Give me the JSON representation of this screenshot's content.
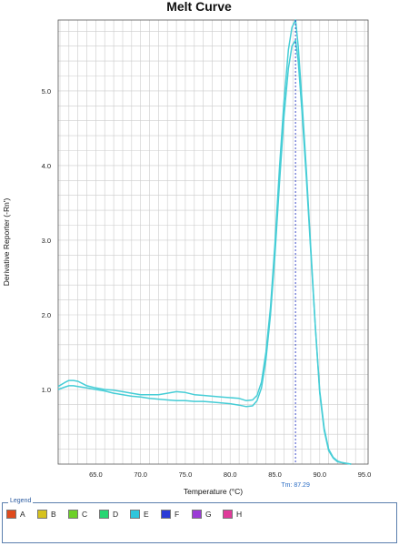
{
  "chart_data": {
    "type": "line",
    "title": "Melt Curve",
    "xlabel": "Temperature (°C)",
    "ylabel": "Derivative Reporter (-Rn')",
    "xlim": [
      60.8,
      95.4
    ],
    "ylim": [
      0.0,
      5.95
    ],
    "xticks": [
      "65.0",
      "70.0",
      "75.0",
      "80.0",
      "85.0",
      "90.0",
      "95.0"
    ],
    "yticks": [
      "1.0",
      "2.0",
      "3.0",
      "4.0",
      "5.0"
    ],
    "grid": true,
    "color": "#46cdd6",
    "tm_label": "Tm: 87.29",
    "tm_value": 87.29,
    "series": [
      {
        "x": [
          60.8,
          61.5,
          62.0,
          62.5,
          63.0,
          63.5,
          64.0,
          65.0,
          66.0,
          67.0,
          68.0,
          69.0,
          70.0,
          71.0,
          72.0,
          73.0,
          74.0,
          75.0,
          76.0,
          77.0,
          78.0,
          79.0,
          80.0,
          81.0,
          81.8,
          82.5,
          83.0,
          83.5,
          84.0,
          84.5,
          85.0,
          85.5,
          86.0,
          86.5,
          86.9,
          87.3,
          87.6,
          88.0,
          88.5,
          89.0,
          89.5,
          90.0,
          90.5,
          91.0,
          91.5,
          92.0,
          92.5,
          93.0,
          93.5
        ],
        "y": [
          1.04,
          1.09,
          1.12,
          1.12,
          1.11,
          1.08,
          1.05,
          1.02,
          1.0,
          0.99,
          0.97,
          0.95,
          0.93,
          0.93,
          0.93,
          0.95,
          0.97,
          0.96,
          0.93,
          0.92,
          0.91,
          0.9,
          0.89,
          0.88,
          0.85,
          0.86,
          0.92,
          1.1,
          1.5,
          2.1,
          2.95,
          3.95,
          4.85,
          5.55,
          5.85,
          5.95,
          5.6,
          4.9,
          3.95,
          2.9,
          1.85,
          0.95,
          0.45,
          0.18,
          0.08,
          0.03,
          0.02,
          0.01,
          0.0
        ]
      },
      {
        "x": [
          60.8,
          61.5,
          62.0,
          62.5,
          63.0,
          63.5,
          64.0,
          65.0,
          66.0,
          67.0,
          68.0,
          69.0,
          70.0,
          71.0,
          72.0,
          73.0,
          74.0,
          75.0,
          76.0,
          77.0,
          78.0,
          79.0,
          80.0,
          81.0,
          81.8,
          82.5,
          83.0,
          83.5,
          84.0,
          84.5,
          85.0,
          85.5,
          86.0,
          86.5,
          86.9,
          87.3,
          87.6,
          88.0,
          88.5,
          89.0,
          89.5,
          90.0,
          90.5,
          91.0,
          91.5,
          92.0,
          92.5,
          93.0,
          93.5
        ],
        "y": [
          1.0,
          1.03,
          1.05,
          1.05,
          1.04,
          1.03,
          1.02,
          1.0,
          0.98,
          0.95,
          0.93,
          0.91,
          0.9,
          0.88,
          0.87,
          0.86,
          0.85,
          0.85,
          0.84,
          0.84,
          0.83,
          0.82,
          0.81,
          0.79,
          0.77,
          0.78,
          0.85,
          1.02,
          1.4,
          2.0,
          2.8,
          3.75,
          4.65,
          5.3,
          5.6,
          5.68,
          5.4,
          4.75,
          3.85,
          2.85,
          1.85,
          0.98,
          0.48,
          0.2,
          0.09,
          0.04,
          0.02,
          0.01,
          0.0
        ]
      }
    ]
  },
  "legend": {
    "title": "Legend",
    "items": [
      {
        "label": "A",
        "color": "#e04a1c"
      },
      {
        "label": "B",
        "color": "#d6c21e"
      },
      {
        "label": "C",
        "color": "#6cd028"
      },
      {
        "label": "D",
        "color": "#27d672"
      },
      {
        "label": "E",
        "color": "#2ec6dc"
      },
      {
        "label": "F",
        "color": "#2a3ad6"
      },
      {
        "label": "G",
        "color": "#9b3ad6"
      },
      {
        "label": "H",
        "color": "#e03a9a"
      }
    ]
  }
}
